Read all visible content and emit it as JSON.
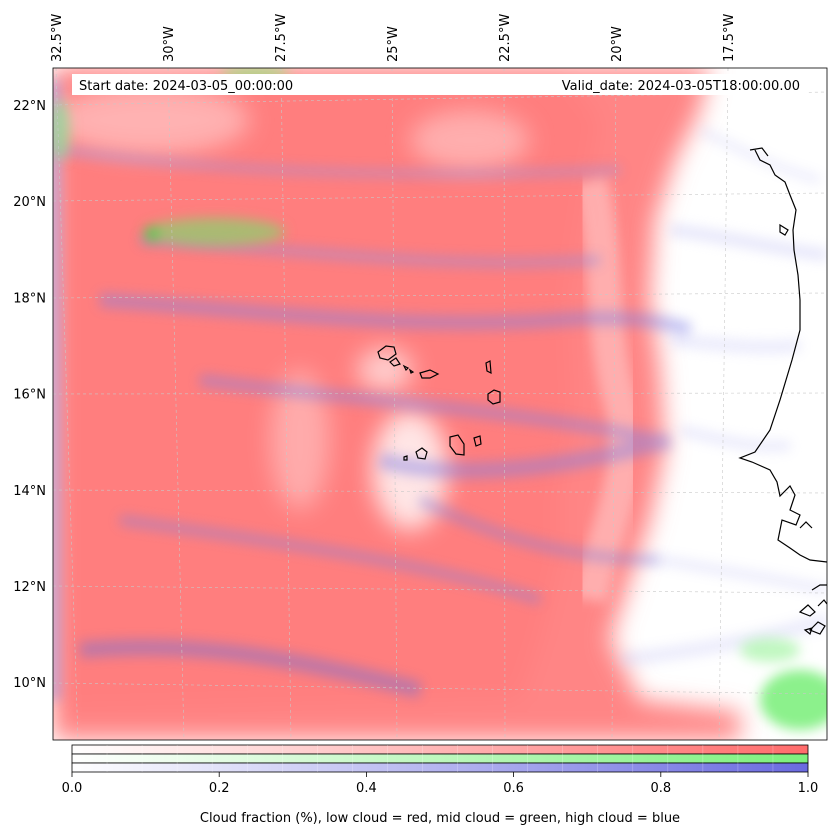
{
  "header": {
    "start_date": "Start date: 2024-03-05_00:00:00",
    "valid_date": "Valid_date: 2024-03-05T18:00:00.00"
  },
  "map": {
    "lon_ticks": [
      {
        "value": -32.5,
        "label": "32.5°W"
      },
      {
        "value": -30,
        "label": "30°W"
      },
      {
        "value": -27.5,
        "label": "27.5°W"
      },
      {
        "value": -25,
        "label": "25°W"
      },
      {
        "value": -22.5,
        "label": "22.5°W"
      },
      {
        "value": -20,
        "label": "20°W"
      },
      {
        "value": -17.5,
        "label": "17.5°W"
      }
    ],
    "lat_ticks": [
      {
        "value": 22,
        "label": "22°N"
      },
      {
        "value": 20,
        "label": "20°N"
      },
      {
        "value": 18,
        "label": "18°N"
      },
      {
        "value": 16,
        "label": "16°N"
      },
      {
        "value": 14,
        "label": "14°N"
      },
      {
        "value": 12,
        "label": "12°N"
      },
      {
        "value": 10,
        "label": "10°N"
      }
    ],
    "layers": {
      "low_cloud_color": "#ff7f7f",
      "mid_cloud_color": "#7fff7f",
      "high_cloud_color": "#7f7fff",
      "coastline_color": "#000000"
    }
  },
  "colorbar": {
    "ticks": [
      {
        "value": 0.0,
        "label": "0.0"
      },
      {
        "value": 0.2,
        "label": "0.2"
      },
      {
        "value": 0.4,
        "label": "0.4"
      },
      {
        "value": 0.6,
        "label": "0.6"
      },
      {
        "value": 0.8,
        "label": "0.8"
      },
      {
        "value": 1.0,
        "label": "1.0"
      }
    ],
    "label": "Cloud fraction (%), low cloud = red, mid cloud = green, high cloud = blue",
    "bars": [
      {
        "name": "low cloud",
        "color": "#ff6b6b"
      },
      {
        "name": "mid cloud",
        "color": "#7cf07c"
      },
      {
        "name": "high cloud",
        "color": "#6a6ae0"
      }
    ]
  }
}
